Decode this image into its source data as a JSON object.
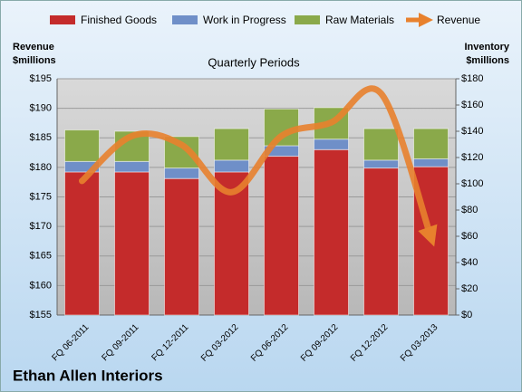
{
  "chart_data": {
    "type": "bar",
    "title": "Ethan Allen Interiors",
    "subtitle": "Quarterly Periods",
    "ylabel": [
      "Revenue",
      "$millions"
    ],
    "y2label": [
      "Inventory",
      "$millions"
    ],
    "categories": [
      "FQ 06-2011",
      "FQ 09-2011",
      "FQ 12-2011",
      "FQ 03-2012",
      "FQ 06-2012",
      "FQ 09-2012",
      "FQ 12-2012",
      "FQ 03-2013"
    ],
    "series": [
      {
        "name": "Finished Goods",
        "color": "#c42b2b",
        "axis": "y2",
        "type": "bar",
        "values": [
          109,
          109,
          104,
          109,
          121,
          126,
          112,
          113
        ]
      },
      {
        "name": "Work in Progress",
        "color": "#6f8fc8",
        "axis": "y2",
        "type": "bar",
        "values": [
          8,
          8,
          8,
          9,
          8,
          8,
          6,
          6
        ]
      },
      {
        "name": "Raw Materials",
        "color": "#8aa94a",
        "axis": "y2",
        "type": "bar",
        "values": [
          24,
          23,
          24,
          24,
          28,
          24,
          24,
          23
        ]
      },
      {
        "name": "Revenue",
        "color": "#e8812d",
        "axis": "y",
        "type": "line",
        "values": [
          177.7,
          185.3,
          183.8,
          175.8,
          185.3,
          187.6,
          192.5,
          168.2
        ]
      }
    ],
    "ylim": [
      155,
      195
    ],
    "yticks": [
      {
        "value": 155,
        "label": "$155"
      },
      {
        "value": 160,
        "label": "$160"
      },
      {
        "value": 165,
        "label": "$165"
      },
      {
        "value": 170,
        "label": "$170"
      },
      {
        "value": 175,
        "label": "$175"
      },
      {
        "value": 180,
        "label": "$180"
      },
      {
        "value": 185,
        "label": "$185"
      },
      {
        "value": 190,
        "label": "$190"
      },
      {
        "value": 195,
        "label": "$195"
      }
    ],
    "y2lim": [
      0,
      180
    ],
    "y2ticks": [
      {
        "value": 0,
        "label": "$0"
      },
      {
        "value": 20,
        "label": "$20"
      },
      {
        "value": 40,
        "label": "$40"
      },
      {
        "value": 60,
        "label": "$60"
      },
      {
        "value": 80,
        "label": "$80"
      },
      {
        "value": 100,
        "label": "$100"
      },
      {
        "value": 120,
        "label": "$120"
      },
      {
        "value": 140,
        "label": "$140"
      },
      {
        "value": 160,
        "label": "$160"
      },
      {
        "value": 180,
        "label": "$180"
      }
    ],
    "grid": true
  }
}
